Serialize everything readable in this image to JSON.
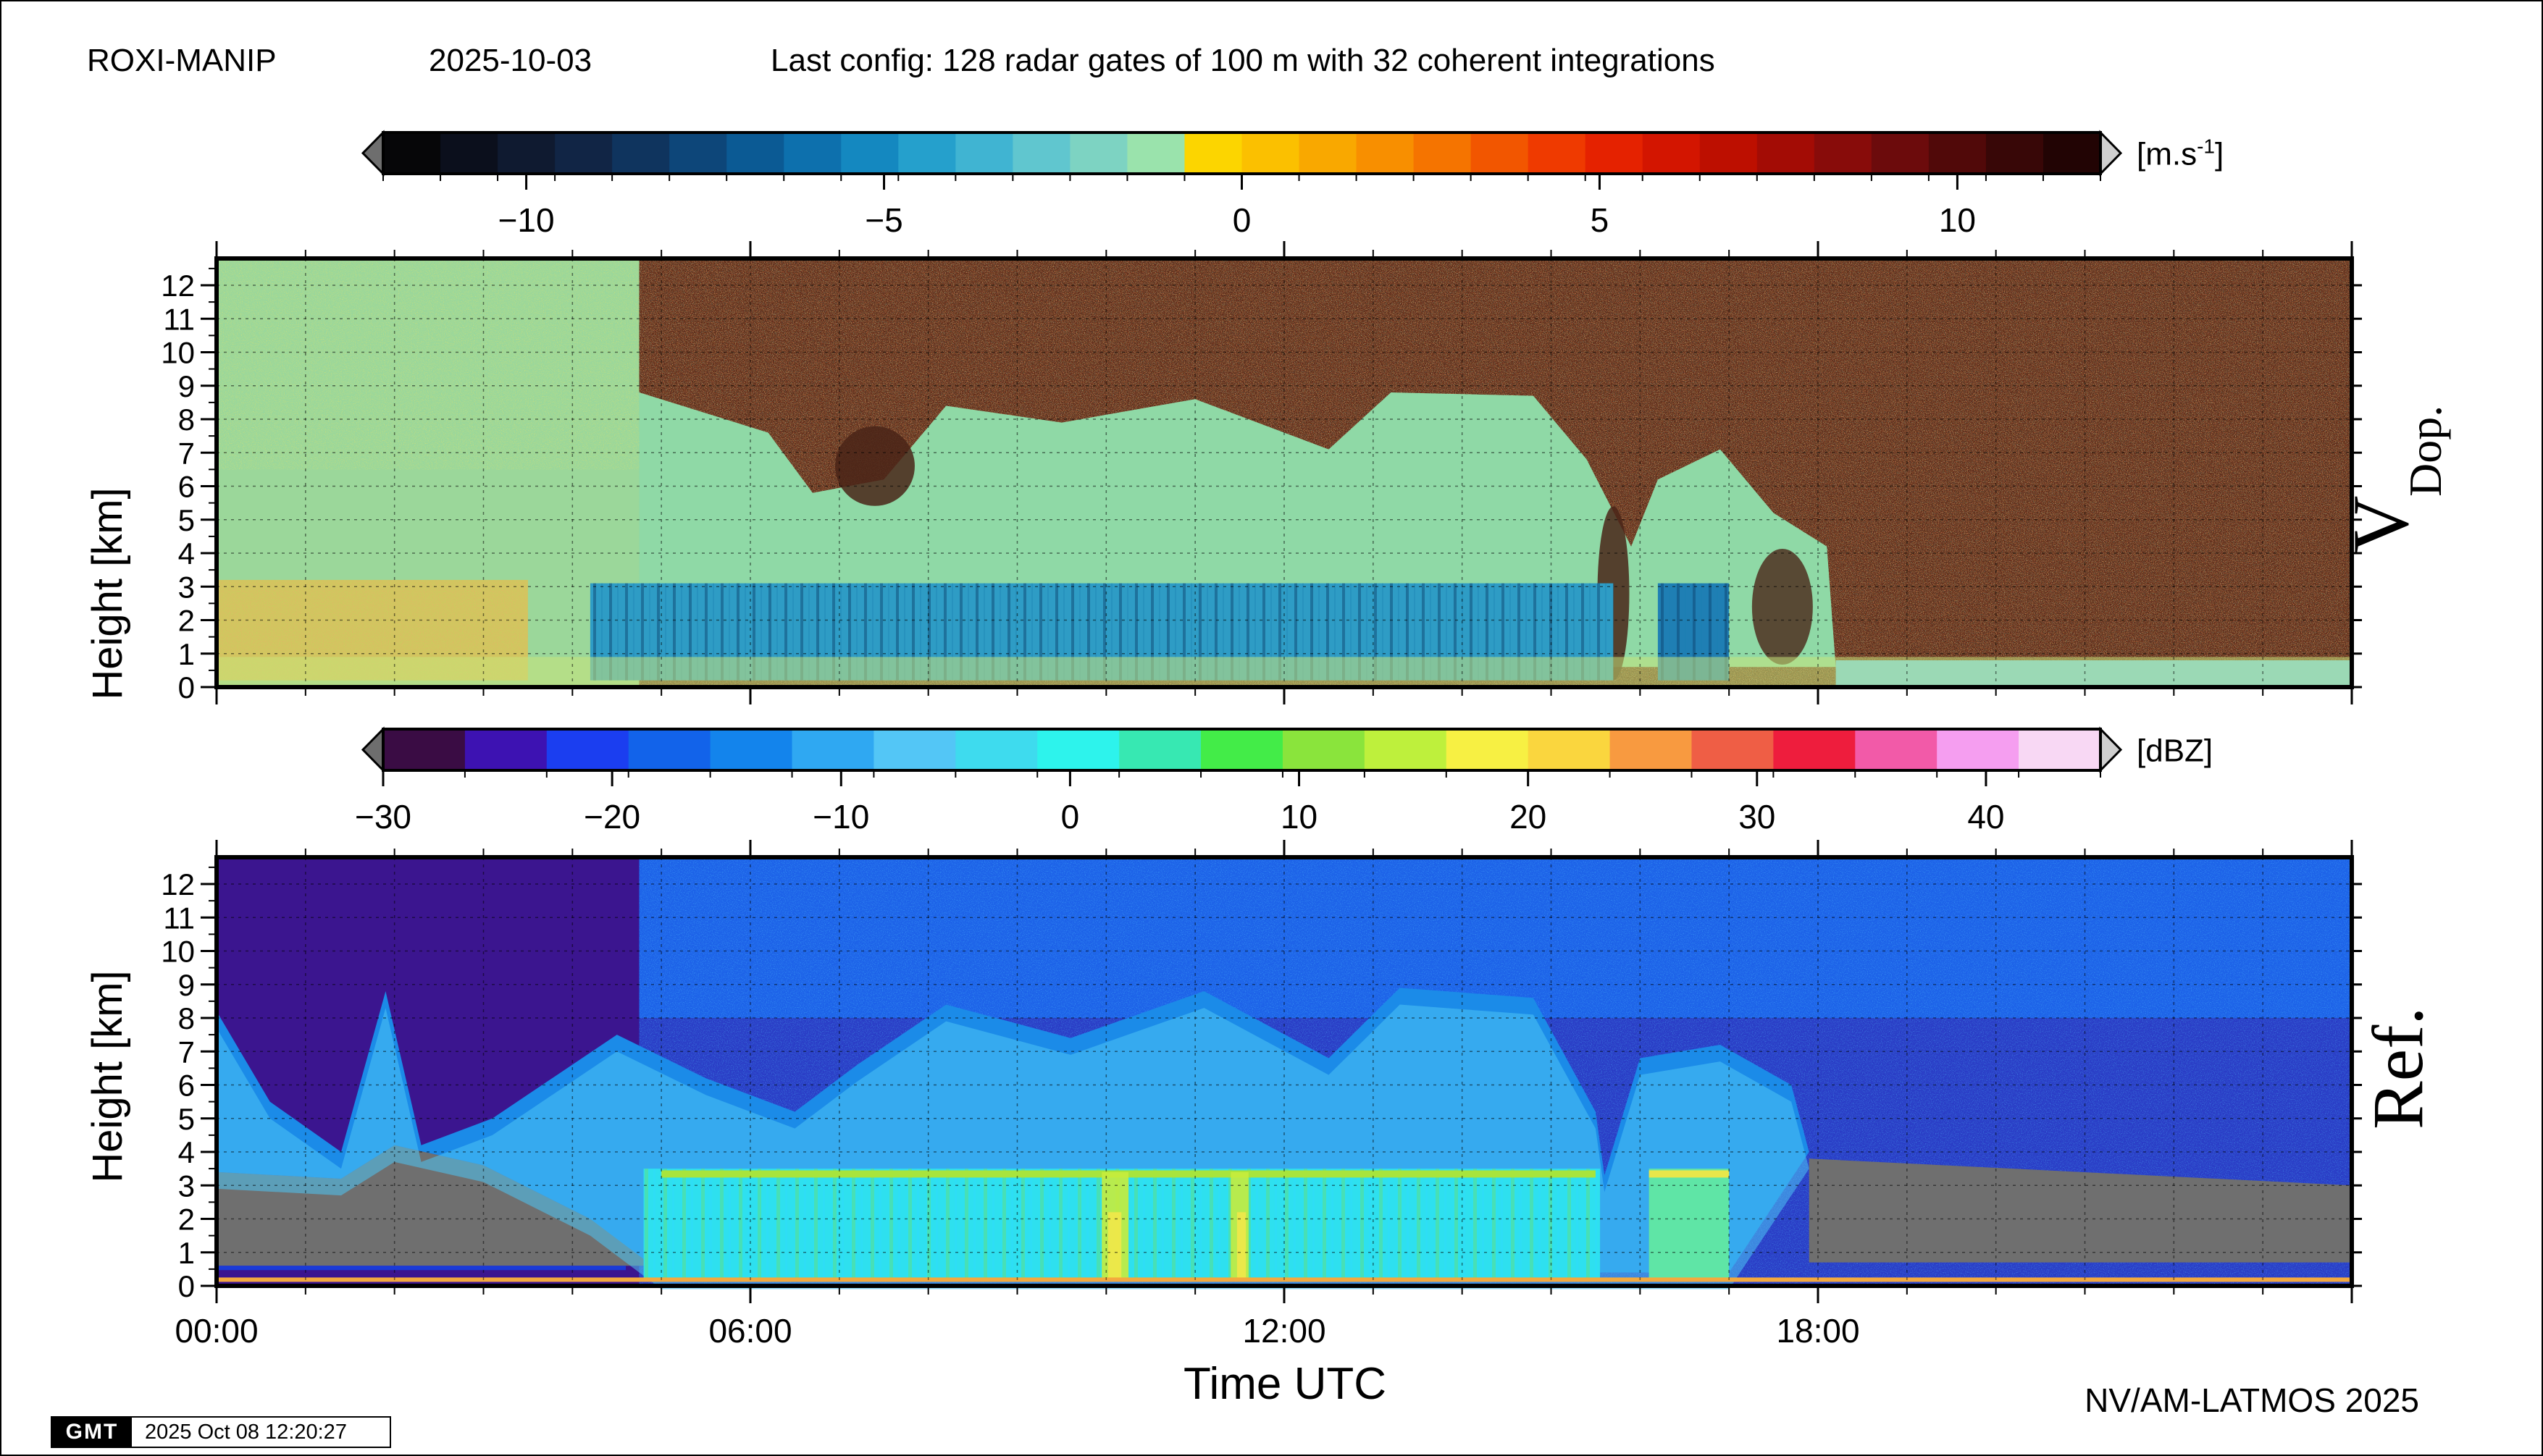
{
  "header": {
    "site": "ROXI-MANIP",
    "date": "2025-10-03",
    "config": "Last config: 128 radar gates of 100 m with 32 coherent integrations"
  },
  "footer": {
    "credit": "NV/AM-LATMOS 2025",
    "gmt_badge": "GMT",
    "gmt_stamp": "2025 Oct 08 12:20:27"
  },
  "colors": {
    "doppler_scale": [
      "#060608",
      "#0b0f1c",
      "#0f1a30",
      "#112545",
      "#0f345e",
      "#0d4679",
      "#0b5a94",
      "#0d70ad",
      "#1488c0",
      "#25a0cc",
      "#40b4d2",
      "#60c6cf",
      "#7dd3c2",
      "#9ae3ac",
      "#fcd500",
      "#fbc000",
      "#f9a800",
      "#f88f00",
      "#f57400",
      "#f25600",
      "#ef3a00",
      "#e52200",
      "#d31500",
      "#bd0f00",
      "#a30c05",
      "#880c0a",
      "#6c0b0c",
      "#510909",
      "#380707",
      "#220404"
    ],
    "reflectivity_scale": [
      "#3a0c44",
      "#3d12b2",
      "#1b3ef0",
      "#1263ea",
      "#1384ec",
      "#2fa8f2",
      "#53c6f6",
      "#3edbee",
      "#2df3ec",
      "#37e8b2",
      "#43ec48",
      "#8ae43c",
      "#bef03c",
      "#f7f043",
      "#fad63e",
      "#f89a40",
      "#ef5e45",
      "#ee1d3d",
      "#f25aa8",
      "#f59ef0",
      "#f8d8f4"
    ],
    "gray_noise": "#6f6f6f"
  },
  "chart_data": [
    {
      "type": "colorbar",
      "name": "doppler_colorbar",
      "unit": "[m.s-1]",
      "unit_base": "[m.s",
      "unit_sup": "-1",
      "unit_close": "]",
      "range": [
        -12,
        12
      ],
      "ticks": [
        -10,
        -5,
        0,
        5,
        10
      ],
      "tick_labels": [
        "−10",
        "−5",
        "0",
        "5",
        "10"
      ],
      "extend": "both"
    },
    {
      "type": "heatmap",
      "name": "doppler_velocity",
      "panel_label": "V",
      "panel_label_sub": "Dop.",
      "ylabel": "Height [km]",
      "yticks": [
        0,
        1,
        2,
        3,
        4,
        5,
        6,
        7,
        8,
        9,
        10,
        11,
        12
      ],
      "ylim": [
        0,
        12.8
      ],
      "xlim": [
        0,
        24
      ],
      "grid": true
    },
    {
      "type": "colorbar",
      "name": "reflectivity_colorbar",
      "unit": "[dBZ]",
      "range": [
        -30,
        45
      ],
      "ticks": [
        -30,
        -20,
        -10,
        0,
        10,
        20,
        30,
        40
      ],
      "tick_labels": [
        "−30",
        "−20",
        "−10",
        "0",
        "10",
        "20",
        "30",
        "40"
      ],
      "extend": "both"
    },
    {
      "type": "heatmap",
      "name": "reflectivity",
      "panel_label": "Ref.",
      "ylabel": "Height [km]",
      "xlabel": "Time UTC",
      "yticks": [
        0,
        1,
        2,
        3,
        4,
        5,
        6,
        7,
        8,
        9,
        10,
        11,
        12
      ],
      "xticks": [
        "00:00",
        "06:00",
        "12:00",
        "18:00"
      ],
      "ylim": [
        0,
        12.8
      ],
      "xlim": [
        0,
        24
      ],
      "grid": true
    }
  ]
}
